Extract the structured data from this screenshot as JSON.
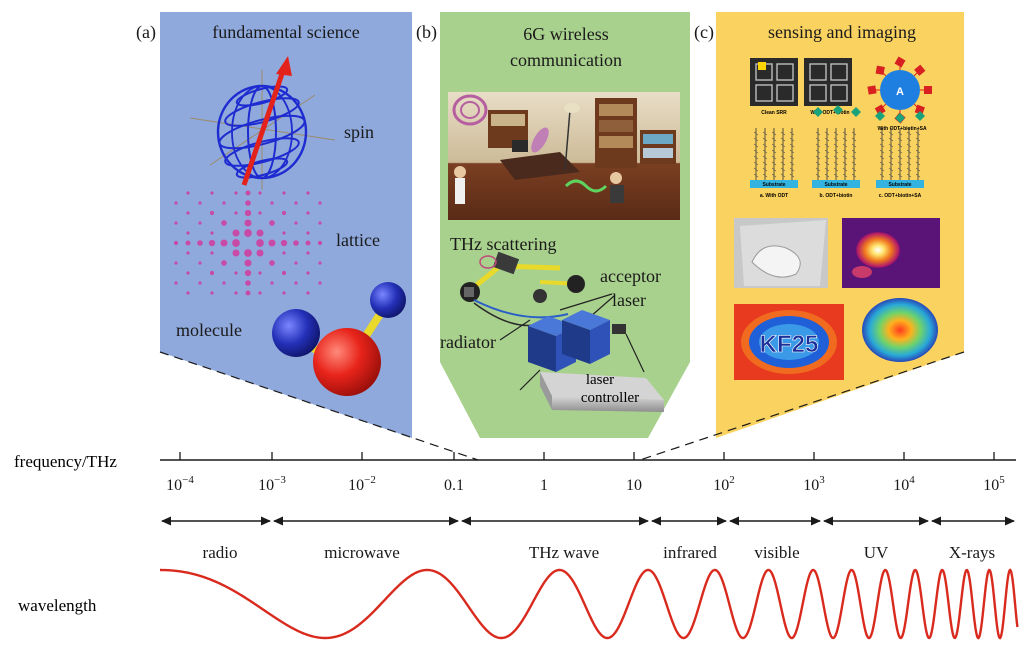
{
  "panels": [
    {
      "letter": "(a)",
      "title": "fundamental science",
      "labels": {
        "spin": "spin",
        "lattice": "lattice",
        "molecule": "molecule"
      }
    },
    {
      "letter": "(b)",
      "title_line1": "6G wireless",
      "title_line2": "communication",
      "labels": {
        "scattering": "THz scattering",
        "acceptor": "acceptor",
        "laser": "laser",
        "radiator": "radiator",
        "controller_line1": "laser",
        "controller_line2": "controller"
      }
    },
    {
      "letter": "(c)",
      "title": "sensing and imaging",
      "srr_labels": [
        "Clean SRR",
        "With ODT+biotin",
        "With ODT+biotin+SA"
      ],
      "substrate": "Substrate",
      "sub_captions": [
        "a. With ODT",
        "b. ODT+biotin",
        "c. ODT+biotin+SA"
      ],
      "molecule_letter": "A",
      "thermal_text": "KF25"
    }
  ],
  "axis": {
    "label": "frequency/THz",
    "ticks": [
      {
        "base": "10",
        "exp": "−4"
      },
      {
        "base": "10",
        "exp": "−3"
      },
      {
        "base": "10",
        "exp": "−2"
      },
      {
        "base": "0.1",
        "exp": ""
      },
      {
        "base": "1",
        "exp": ""
      },
      {
        "base": "10",
        "exp": ""
      },
      {
        "base": "10",
        "exp": "2"
      },
      {
        "base": "10",
        "exp": "3"
      },
      {
        "base": "10",
        "exp": "4"
      },
      {
        "base": "10",
        "exp": "5"
      }
    ]
  },
  "bands": [
    {
      "label": "radio",
      "color": "#1a1a1a"
    },
    {
      "label": "microwave",
      "color": "#1a1a1a"
    },
    {
      "label": "THz wave",
      "color": "#e0261c"
    },
    {
      "label": "infrared",
      "color": "#1a1a1a"
    },
    {
      "label": "visible",
      "color": "#1a1a1a"
    },
    {
      "label": "UV",
      "color": "#1a1a1a"
    },
    {
      "label": "X-rays",
      "color": "#1a1a1a"
    }
  ],
  "wavelength": {
    "label": "wavelength",
    "color": "#d92a1e"
  },
  "colors": {
    "panel_a": "#8fa9dc",
    "panel_b": "#a9d18e",
    "panel_c": "#fad25f"
  }
}
